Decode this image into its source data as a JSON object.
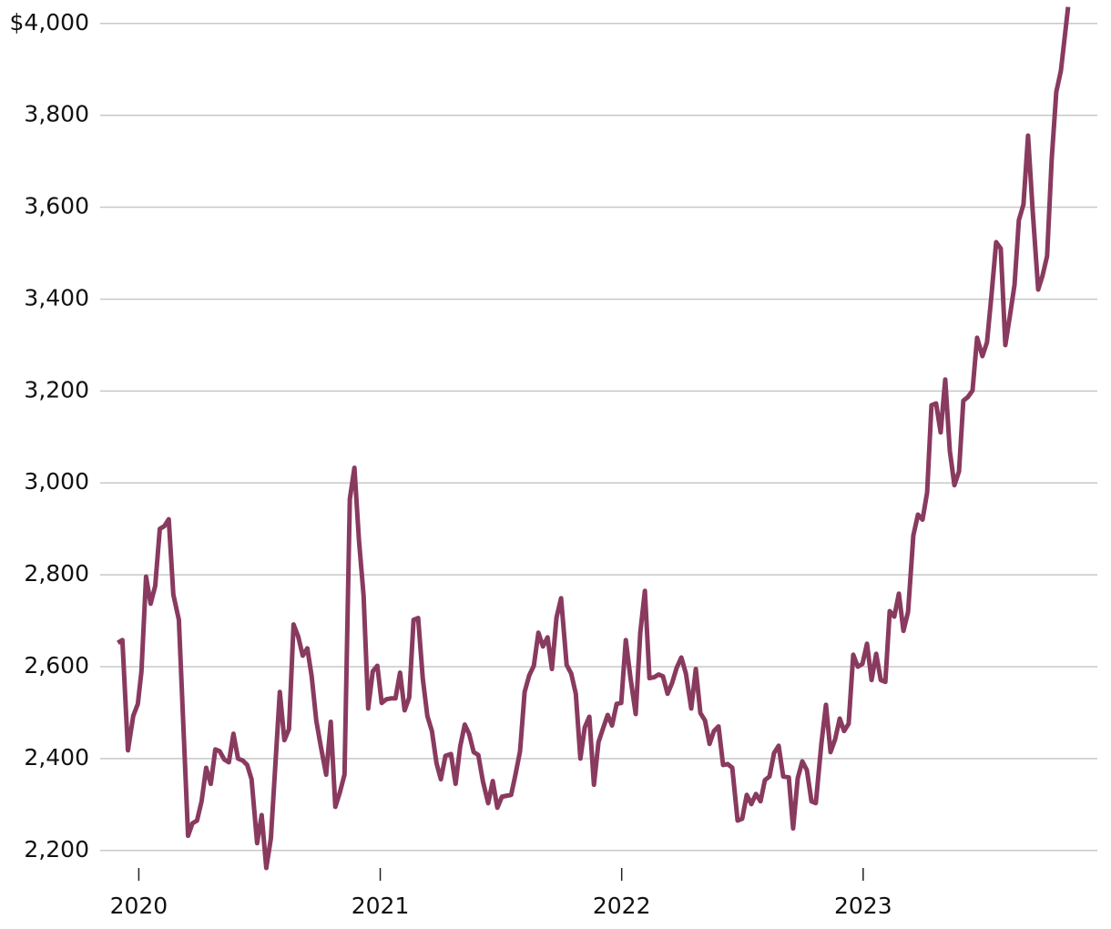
{
  "chart_data": {
    "type": "line",
    "color": "#893a5f",
    "grid": true,
    "x": [
      2019.913,
      2019.932,
      2019.955,
      2019.977,
      2019.996,
      2020.011,
      2020.03,
      2020.049,
      2020.068,
      2020.087,
      2020.106,
      2020.124,
      2020.143,
      2020.166,
      2020.185,
      2020.204,
      2020.222,
      2020.241,
      2020.26,
      2020.279,
      2020.298,
      2020.317,
      2020.335,
      2020.354,
      2020.373,
      2020.392,
      2020.411,
      2020.43,
      2020.449,
      2020.467,
      2020.49,
      2020.509,
      2020.528,
      2020.547,
      2020.566,
      2020.584,
      2020.603,
      2020.622,
      2020.641,
      2020.66,
      2020.679,
      2020.698,
      2020.716,
      2020.735,
      2020.754,
      2020.776,
      2020.795,
      2020.814,
      2020.833,
      2020.852,
      2020.874,
      2020.893,
      2020.912,
      2020.931,
      2020.95,
      2020.969,
      2020.988,
      2021.006,
      2021.025,
      2021.044,
      2021.063,
      2021.082,
      2021.101,
      2021.12,
      2021.138,
      2021.157,
      2021.176,
      2021.195,
      2021.214,
      2021.233,
      2021.251,
      2021.27,
      2021.293,
      2021.312,
      2021.331,
      2021.35,
      2021.368,
      2021.387,
      2021.406,
      2021.425,
      2021.447,
      2021.466,
      2021.485,
      2021.504,
      2021.523,
      2021.542,
      2021.56,
      2021.579,
      2021.598,
      2021.617,
      2021.636,
      2021.655,
      2021.674,
      2021.693,
      2021.711,
      2021.73,
      2021.749,
      2021.772,
      2021.791,
      2021.81,
      2021.829,
      2021.847,
      2021.866,
      2021.885,
      2021.904,
      2021.923,
      2021.942,
      2021.96,
      2021.979,
      2021.998,
      2022.017,
      2022.036,
      2022.058,
      2022.077,
      2022.096,
      2022.115,
      2022.134,
      2022.153,
      2022.171,
      2022.19,
      2022.209,
      2022.228,
      2022.247,
      2022.266,
      2022.288,
      2022.307,
      2022.326,
      2022.345,
      2022.364,
      2022.382,
      2022.401,
      2022.42,
      2022.439,
      2022.458,
      2022.48,
      2022.499,
      2022.518,
      2022.537,
      2022.556,
      2022.575,
      2022.593,
      2022.612,
      2022.631,
      2022.65,
      2022.669,
      2022.692,
      2022.71,
      2022.729,
      2022.748,
      2022.767,
      2022.786,
      2022.804,
      2022.827,
      2022.846,
      2022.865,
      2022.884,
      2022.903,
      2022.921,
      2022.94,
      2022.959,
      2022.978,
      2022.997,
      2023.016,
      2023.035,
      2023.054,
      2023.073,
      2023.092,
      2023.11,
      2023.129,
      2023.148,
      2023.167,
      2023.186,
      2023.208,
      2023.227,
      2023.246,
      2023.265,
      2023.283,
      2023.302,
      2023.321,
      2023.34,
      2023.359,
      2023.378,
      2023.397,
      2023.415,
      2023.434,
      2023.453,
      2023.472,
      2023.494,
      2023.513,
      2023.532,
      2023.551,
      2023.57,
      2023.589,
      2023.608,
      2023.627,
      2023.645,
      2023.664,
      2023.683,
      2023.702,
      2023.725,
      2023.743,
      2023.762,
      2023.781,
      2023.8,
      2023.819,
      2023.849
    ],
    "values": [
      2652,
      2658,
      2418,
      2493,
      2519,
      2590,
      2796,
      2737,
      2776,
      2900,
      2906,
      2921,
      2757,
      2702,
      2466,
      2232,
      2259,
      2265,
      2307,
      2380,
      2345,
      2420,
      2416,
      2398,
      2392,
      2454,
      2400,
      2396,
      2386,
      2355,
      2216,
      2277,
      2162,
      2226,
      2390,
      2545,
      2440,
      2464,
      2692,
      2666,
      2624,
      2640,
      2579,
      2483,
      2426,
      2365,
      2480,
      2295,
      2327,
      2365,
      2965,
      3033,
      2874,
      2755,
      2509,
      2590,
      2602,
      2521,
      2529,
      2531,
      2531,
      2587,
      2505,
      2533,
      2702,
      2706,
      2575,
      2493,
      2460,
      2390,
      2355,
      2406,
      2410,
      2345,
      2426,
      2474,
      2454,
      2414,
      2408,
      2351,
      2303,
      2351,
      2293,
      2317,
      2319,
      2321,
      2365,
      2416,
      2545,
      2581,
      2602,
      2674,
      2644,
      2664,
      2595,
      2707,
      2749,
      2604,
      2585,
      2541,
      2400,
      2468,
      2491,
      2343,
      2436,
      2466,
      2495,
      2472,
      2519,
      2521,
      2658,
      2577,
      2497,
      2674,
      2765,
      2575,
      2577,
      2583,
      2579,
      2541,
      2565,
      2598,
      2620,
      2585,
      2509,
      2595,
      2499,
      2483,
      2432,
      2460,
      2470,
      2386,
      2388,
      2380,
      2265,
      2269,
      2321,
      2301,
      2323,
      2307,
      2353,
      2361,
      2412,
      2428,
      2361,
      2359,
      2248,
      2357,
      2394,
      2375,
      2307,
      2303,
      2432,
      2517,
      2414,
      2442,
      2487,
      2460,
      2476,
      2626,
      2600,
      2606,
      2650,
      2571,
      2628,
      2571,
      2567,
      2721,
      2709,
      2759,
      2678,
      2719,
      2886,
      2931,
      2920,
      2979,
      3169,
      3173,
      3110,
      3225,
      3070,
      2995,
      3025,
      3179,
      3187,
      3201,
      3316,
      3276,
      3306,
      3411,
      3524,
      3510,
      3300,
      3364,
      3431,
      3572,
      3606,
      3756,
      3594,
      3421,
      3451,
      3494,
      3705,
      3851,
      3897,
      4036
    ],
    "xlim": [
      2019.84,
      2023.97
    ],
    "xticks": [
      2020,
      2021,
      2022,
      2023
    ],
    "ylim": [
      2150,
      4050
    ],
    "yticks": [
      {
        "value": 2200,
        "label": "2,200"
      },
      {
        "value": 2400,
        "label": "2,400"
      },
      {
        "value": 2600,
        "label": "2,600"
      },
      {
        "value": 2800,
        "label": "2,800"
      },
      {
        "value": 3000,
        "label": "3,000"
      },
      {
        "value": 3200,
        "label": "3,200"
      },
      {
        "value": 3400,
        "label": "3,400"
      },
      {
        "value": 3600,
        "label": "3,600"
      },
      {
        "value": 3800,
        "label": "3,800"
      },
      {
        "value": 4000,
        "label": "$4,000"
      }
    ]
  }
}
